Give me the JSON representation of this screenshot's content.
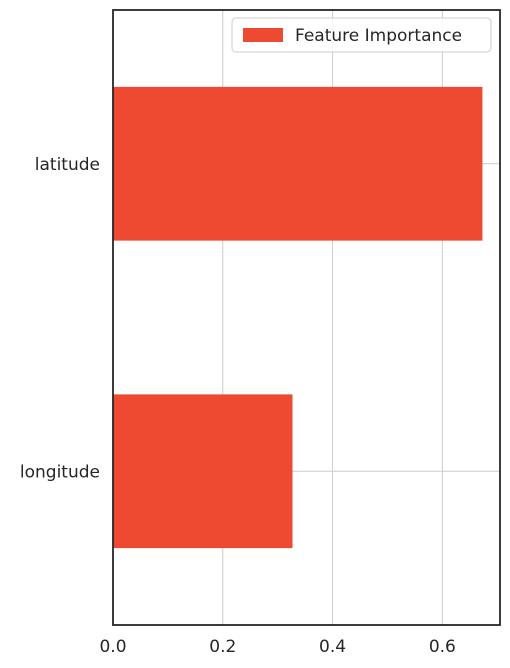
{
  "chart_data": {
    "type": "bar",
    "orientation": "horizontal",
    "title": "",
    "xlabel": "",
    "ylabel": "",
    "categories": [
      "latitude",
      "longitude"
    ],
    "series": [
      {
        "name": "Feature Importance",
        "values": [
          0.673,
          0.327
        ],
        "color": "#ee4a32"
      }
    ],
    "xlim": [
      0,
      0.705
    ],
    "xticks": [
      "0.0",
      "0.2",
      "0.4",
      "0.6"
    ],
    "xtick_values": [
      0.0,
      0.2,
      0.4,
      0.6
    ],
    "grid": true,
    "legend": "top-right"
  }
}
